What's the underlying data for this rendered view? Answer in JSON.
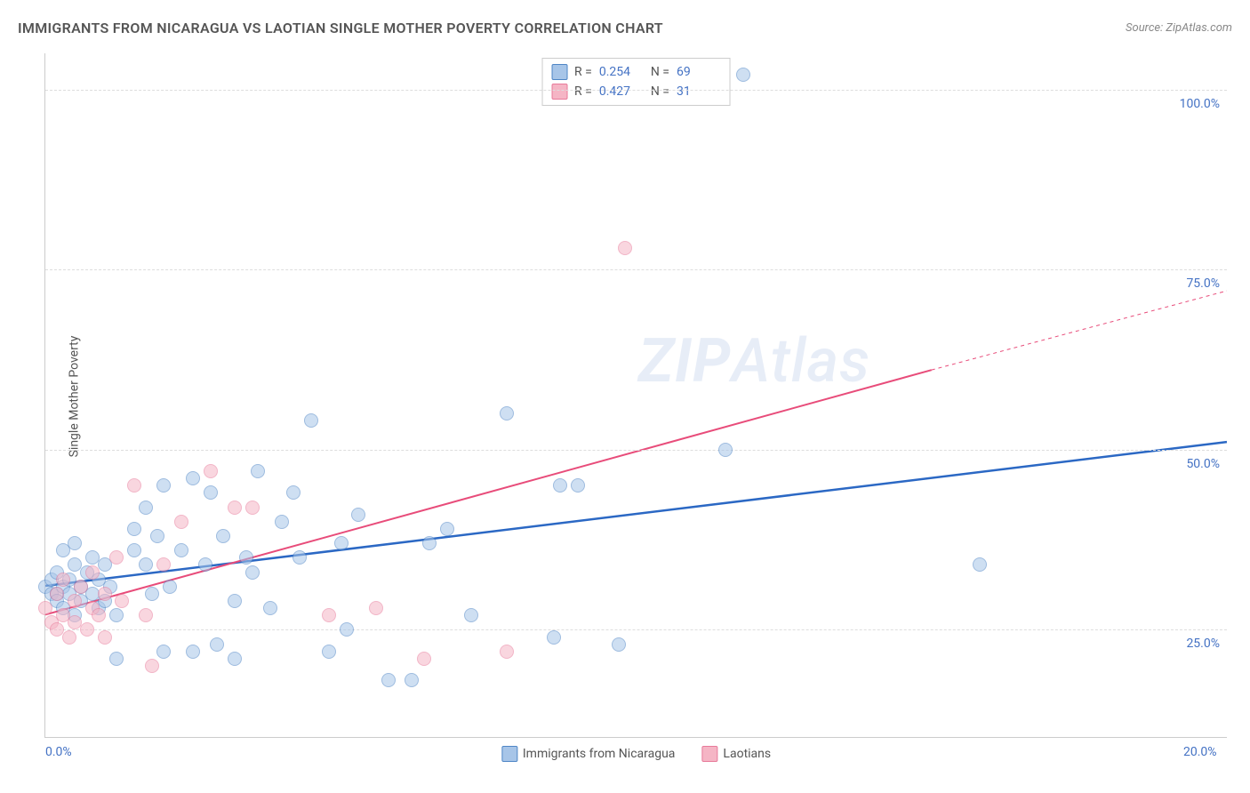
{
  "title": "IMMIGRANTS FROM NICARAGUA VS LAOTIAN SINGLE MOTHER POVERTY CORRELATION CHART",
  "source": "Source: ZipAtlas.com",
  "watermark_bold": "ZIP",
  "watermark_light": "Atlas",
  "y_axis_title": "Single Mother Poverty",
  "chart": {
    "type": "scatter",
    "xlim": [
      0,
      20
    ],
    "ylim": [
      10,
      105
    ],
    "x_ticks": [
      {
        "pos": 0,
        "label": "0.0%"
      },
      {
        "pos": 20,
        "label": "20.0%"
      }
    ],
    "y_ticks": [
      {
        "pos": 25,
        "label": "25.0%"
      },
      {
        "pos": 50,
        "label": "50.0%"
      },
      {
        "pos": 75,
        "label": "75.0%"
      },
      {
        "pos": 100,
        "label": "100.0%"
      }
    ],
    "grid_color": "#dddddd",
    "background_color": "#ffffff",
    "marker_radius": 8,
    "series": [
      {
        "name": "Immigrants from Nicaragua",
        "fill": "#a7c5e8",
        "stroke": "#4f86c6",
        "fill_opacity": 0.55,
        "r_value": "0.254",
        "n_value": "69",
        "trend": {
          "x1": 0,
          "y1": 31,
          "x2": 20,
          "y2": 51,
          "color": "#2b68c4",
          "width": 2.5,
          "dash": "none"
        },
        "points": [
          [
            0.0,
            31
          ],
          [
            0.1,
            30
          ],
          [
            0.1,
            32
          ],
          [
            0.2,
            30
          ],
          [
            0.2,
            29
          ],
          [
            0.2,
            33
          ],
          [
            0.3,
            31
          ],
          [
            0.3,
            36
          ],
          [
            0.3,
            28
          ],
          [
            0.4,
            32
          ],
          [
            0.4,
            30
          ],
          [
            0.5,
            34
          ],
          [
            0.5,
            27
          ],
          [
            0.5,
            37
          ],
          [
            0.6,
            31
          ],
          [
            0.6,
            29
          ],
          [
            0.7,
            33
          ],
          [
            0.8,
            30
          ],
          [
            0.8,
            35
          ],
          [
            0.9,
            28
          ],
          [
            0.9,
            32
          ],
          [
            1.0,
            29
          ],
          [
            1.0,
            34
          ],
          [
            1.1,
            31
          ],
          [
            1.2,
            21
          ],
          [
            1.2,
            27
          ],
          [
            1.5,
            39
          ],
          [
            1.5,
            36
          ],
          [
            1.7,
            34
          ],
          [
            1.7,
            42
          ],
          [
            1.8,
            30
          ],
          [
            1.9,
            38
          ],
          [
            2.0,
            22
          ],
          [
            2.0,
            45
          ],
          [
            2.1,
            31
          ],
          [
            2.3,
            36
          ],
          [
            2.5,
            22
          ],
          [
            2.5,
            46
          ],
          [
            2.7,
            34
          ],
          [
            2.8,
            44
          ],
          [
            2.9,
            23
          ],
          [
            3.0,
            38
          ],
          [
            3.2,
            21
          ],
          [
            3.2,
            29
          ],
          [
            3.4,
            35
          ],
          [
            3.5,
            33
          ],
          [
            3.6,
            47
          ],
          [
            3.8,
            28
          ],
          [
            4.0,
            40
          ],
          [
            4.2,
            44
          ],
          [
            4.3,
            35
          ],
          [
            4.5,
            54
          ],
          [
            4.8,
            22
          ],
          [
            5.0,
            37
          ],
          [
            5.1,
            25
          ],
          [
            5.3,
            41
          ],
          [
            5.8,
            18
          ],
          [
            6.2,
            18
          ],
          [
            6.5,
            37
          ],
          [
            6.8,
            39
          ],
          [
            7.2,
            27
          ],
          [
            7.8,
            55
          ],
          [
            8.6,
            24
          ],
          [
            8.7,
            45
          ],
          [
            9.0,
            45
          ],
          [
            9.7,
            23
          ],
          [
            11.5,
            50
          ],
          [
            11.8,
            102
          ],
          [
            15.8,
            34
          ]
        ]
      },
      {
        "name": "Laotians",
        "fill": "#f5b5c5",
        "stroke": "#e87a9a",
        "fill_opacity": 0.55,
        "r_value": "0.427",
        "n_value": "31",
        "trend": {
          "x1": 0,
          "y1": 27,
          "x2": 15,
          "y2": 61,
          "color": "#e84c7a",
          "width": 2,
          "dash": "none"
        },
        "trend_extrap": {
          "x1": 15,
          "y1": 61,
          "x2": 20,
          "y2": 72,
          "color": "#e84c7a",
          "width": 1,
          "dash": "4 4"
        },
        "points": [
          [
            0.0,
            28
          ],
          [
            0.1,
            26
          ],
          [
            0.2,
            30
          ],
          [
            0.2,
            25
          ],
          [
            0.3,
            27
          ],
          [
            0.3,
            32
          ],
          [
            0.4,
            24
          ],
          [
            0.5,
            29
          ],
          [
            0.5,
            26
          ],
          [
            0.6,
            31
          ],
          [
            0.7,
            25
          ],
          [
            0.8,
            28
          ],
          [
            0.8,
            33
          ],
          [
            0.9,
            27
          ],
          [
            1.0,
            24
          ],
          [
            1.0,
            30
          ],
          [
            1.2,
            35
          ],
          [
            1.3,
            29
          ],
          [
            1.5,
            45
          ],
          [
            1.7,
            27
          ],
          [
            1.8,
            20
          ],
          [
            2.0,
            34
          ],
          [
            2.3,
            40
          ],
          [
            2.8,
            47
          ],
          [
            3.2,
            42
          ],
          [
            3.5,
            42
          ],
          [
            4.8,
            27
          ],
          [
            5.6,
            28
          ],
          [
            6.4,
            21
          ],
          [
            7.8,
            22
          ],
          [
            9.8,
            78
          ]
        ]
      }
    ],
    "bottom_legend": [
      {
        "label": "Immigrants from Nicaragua",
        "fill": "#a7c5e8",
        "stroke": "#4f86c6"
      },
      {
        "label": "Laotians",
        "fill": "#f5b5c5",
        "stroke": "#e87a9a"
      }
    ]
  }
}
